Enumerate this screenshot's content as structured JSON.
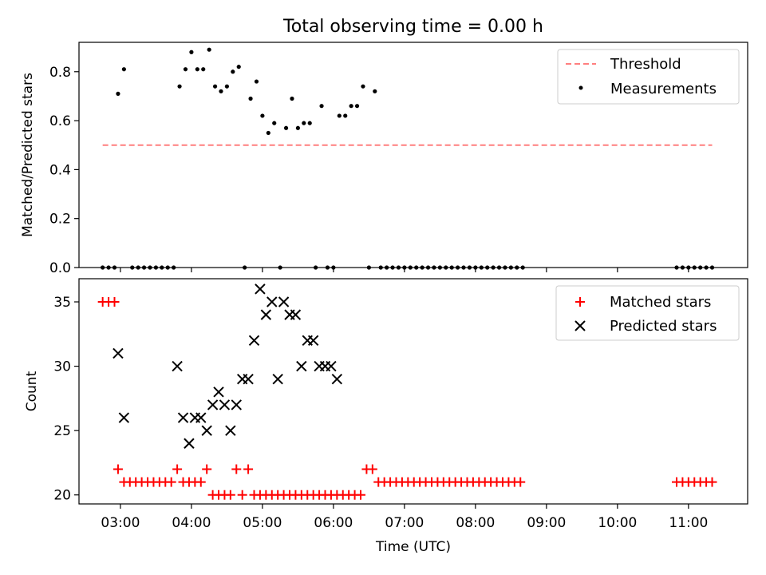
{
  "figure": {
    "title": "Total observing time = 0.00 h"
  },
  "chart_data": [
    {
      "type": "scatter",
      "ylabel": "Matched/Predicted stars",
      "xlabel": "",
      "ylim": [
        0,
        0.92
      ],
      "yticks": [
        0.0,
        0.2,
        0.4,
        0.6,
        0.8
      ],
      "ytick_labels": [
        "0.0",
        "0.2",
        "0.4",
        "0.6",
        "0.8"
      ],
      "xlim": [
        "02:25",
        "11:50"
      ],
      "legend_position": "top-right",
      "grid": false,
      "series": [
        {
          "name": "Threshold",
          "style": "dashed-line",
          "color": "#ff7f7f",
          "x": [
            "02:45",
            "11:20"
          ],
          "y": [
            0.5,
            0.5
          ]
        },
        {
          "name": "Measurements",
          "style": "dot",
          "color": "#000000",
          "x": [
            "02:45",
            "02:50",
            "02:55",
            "02:58",
            "03:03",
            "03:10",
            "03:15",
            "03:20",
            "03:25",
            "03:30",
            "03:35",
            "03:40",
            "03:45",
            "03:50",
            "03:55",
            "04:00",
            "04:05",
            "04:10",
            "04:15",
            "04:20",
            "04:25",
            "04:30",
            "04:35",
            "04:40",
            "04:45",
            "04:50",
            "04:55",
            "05:00",
            "05:05",
            "05:10",
            "05:15",
            "05:20",
            "05:25",
            "05:30",
            "05:35",
            "05:40",
            "05:45",
            "05:50",
            "05:55",
            "06:00",
            "06:05",
            "06:10",
            "06:15",
            "06:20",
            "06:25",
            "06:30",
            "06:35",
            "06:40",
            "06:45",
            "06:50",
            "06:55",
            "07:00",
            "07:05",
            "07:10",
            "07:15",
            "07:20",
            "07:25",
            "07:30",
            "07:35",
            "07:40",
            "07:45",
            "07:50",
            "07:55",
            "08:00",
            "08:05",
            "08:10",
            "08:15",
            "08:20",
            "08:25",
            "08:30",
            "08:35",
            "08:40",
            "10:50",
            "10:55",
            "11:00",
            "11:05",
            "11:10",
            "11:15",
            "11:20"
          ],
          "y": [
            0.0,
            0.0,
            0.0,
            0.71,
            0.81,
            0.0,
            0.0,
            0.0,
            0.0,
            0.0,
            0.0,
            0.0,
            0.0,
            0.74,
            0.81,
            0.88,
            0.81,
            0.81,
            0.89,
            0.74,
            0.72,
            0.74,
            0.8,
            0.82,
            0.0,
            0.69,
            0.76,
            0.62,
            0.55,
            0.59,
            0.0,
            0.57,
            0.69,
            0.57,
            0.59,
            0.59,
            0.0,
            0.66,
            0.0,
            0.0,
            0.62,
            0.62,
            0.66,
            0.66,
            0.74,
            0.0,
            0.72,
            0.0,
            0.0,
            0.0,
            0.0,
            0.0,
            0.0,
            0.0,
            0.0,
            0.0,
            0.0,
            0.0,
            0.0,
            0.0,
            0.0,
            0.0,
            0.0,
            0.0,
            0.0,
            0.0,
            0.0,
            0.0,
            0.0,
            0.0,
            0.0,
            0.0,
            0.0,
            0.0,
            0.0,
            0.0,
            0.0,
            0.0,
            0.0
          ]
        }
      ]
    },
    {
      "type": "scatter",
      "ylabel": "Count",
      "xlabel": "Time (UTC)",
      "ylim": [
        19.3,
        36.8
      ],
      "yticks": [
        20,
        25,
        30,
        35
      ],
      "ytick_labels": [
        "20",
        "25",
        "30",
        "35"
      ],
      "xlim": [
        "02:25",
        "11:50"
      ],
      "xticks": [
        "03:00",
        "04:00",
        "05:00",
        "06:00",
        "07:00",
        "08:00",
        "09:00",
        "10:00",
        "11:00"
      ],
      "xtick_labels": [
        "03:00",
        "04:00",
        "05:00",
        "06:00",
        "07:00",
        "08:00",
        "09:00",
        "10:00",
        "11:00"
      ],
      "legend_position": "top-right",
      "grid": false,
      "series": [
        {
          "name": "Matched stars",
          "style": "plus",
          "color": "#ff0000",
          "x": [
            "02:45",
            "02:50",
            "02:55",
            "02:58",
            "03:03",
            "03:08",
            "03:13",
            "03:18",
            "03:23",
            "03:28",
            "03:33",
            "03:38",
            "03:43",
            "03:48",
            "03:53",
            "03:58",
            "04:03",
            "04:08",
            "04:13",
            "04:18",
            "04:23",
            "04:28",
            "04:33",
            "04:38",
            "04:43",
            "04:48",
            "04:53",
            "04:58",
            "05:03",
            "05:08",
            "05:13",
            "05:18",
            "05:23",
            "05:28",
            "05:33",
            "05:38",
            "05:43",
            "05:48",
            "05:53",
            "05:58",
            "06:03",
            "06:08",
            "06:13",
            "06:18",
            "06:23",
            "06:28",
            "06:33",
            "06:38",
            "06:43",
            "06:48",
            "06:53",
            "06:58",
            "07:03",
            "07:08",
            "07:13",
            "07:18",
            "07:23",
            "07:28",
            "07:33",
            "07:38",
            "07:43",
            "07:48",
            "07:53",
            "07:58",
            "08:03",
            "08:08",
            "08:13",
            "08:18",
            "08:23",
            "08:28",
            "08:33",
            "08:38",
            "10:50",
            "10:55",
            "11:00",
            "11:05",
            "11:10",
            "11:15",
            "11:20"
          ],
          "y": [
            35,
            35,
            35,
            22,
            21,
            21,
            21,
            21,
            21,
            21,
            21,
            21,
            21,
            22,
            21,
            21,
            21,
            21,
            22,
            20,
            20,
            20,
            20,
            22,
            20,
            22,
            20,
            20,
            20,
            20,
            20,
            20,
            20,
            20,
            20,
            20,
            20,
            20,
            20,
            20,
            20,
            20,
            20,
            20,
            20,
            22,
            22,
            21,
            21,
            21,
            21,
            21,
            21,
            21,
            21,
            21,
            21,
            21,
            21,
            21,
            21,
            21,
            21,
            21,
            21,
            21,
            21,
            21,
            21,
            21,
            21,
            21,
            21,
            21,
            21,
            21,
            21,
            21,
            21
          ]
        },
        {
          "name": "Predicted stars",
          "style": "x",
          "color": "#000000",
          "x": [
            "02:58",
            "03:03",
            "03:48",
            "03:53",
            "03:58",
            "04:03",
            "04:08",
            "04:13",
            "04:18",
            "04:23",
            "04:28",
            "04:33",
            "04:38",
            "04:43",
            "04:48",
            "04:53",
            "04:58",
            "05:03",
            "05:08",
            "05:13",
            "05:18",
            "05:23",
            "05:28",
            "05:33",
            "05:38",
            "05:43",
            "05:48",
            "05:53",
            "05:58",
            "06:03",
            "06:08",
            "06:13",
            "06:18",
            "06:23",
            "06:28",
            "06:33",
            "06:38",
            "06:43",
            "06:48"
          ],
          "y": [
            31,
            26,
            30,
            26,
            24,
            26,
            26,
            25,
            27,
            28,
            27,
            25,
            27,
            29,
            29,
            32,
            36,
            34,
            35,
            29,
            35,
            34,
            34,
            30,
            32,
            32,
            30,
            30,
            30,
            29,
            null,
            null,
            null,
            null,
            null,
            null,
            null,
            null,
            null
          ]
        }
      ]
    }
  ]
}
